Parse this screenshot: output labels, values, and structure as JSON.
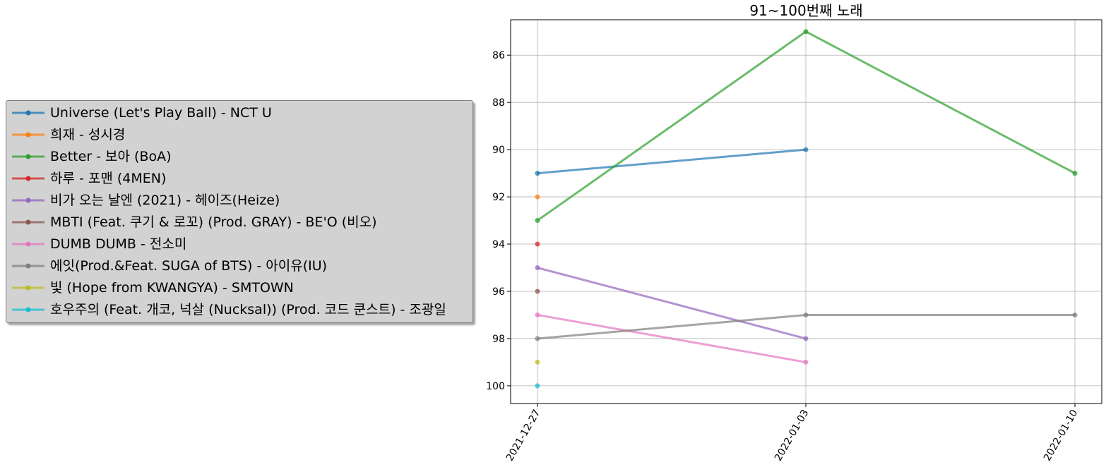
{
  "chart_data": {
    "type": "line",
    "title": "91~100번째 노래",
    "xlabel": "",
    "ylabel": "",
    "x": [
      "2021-12-27",
      "2022-01-03",
      "2022-01-10"
    ],
    "y_inverted": true,
    "ylim": [
      100.75,
      84.5
    ],
    "yticks": [
      86,
      88,
      90,
      92,
      94,
      96,
      98,
      100
    ],
    "grid": true,
    "legend_position": "left, outside plot",
    "series": [
      {
        "name": "Universe (Let's Play Ball) - NCT U",
        "color": "#1f77b4",
        "values": [
          91,
          90,
          null
        ]
      },
      {
        "name": "희재 - 성시경",
        "color": "#ff7f0e",
        "values": [
          92,
          null,
          null
        ]
      },
      {
        "name": "Better - 보아 (BoA)",
        "color": "#2ca02c",
        "values": [
          93,
          85,
          91
        ]
      },
      {
        "name": "하루 - 포맨 (4MEN)",
        "color": "#d62728",
        "values": [
          94,
          null,
          null
        ]
      },
      {
        "name": "비가 오는 날엔 (2021) - 헤이즈(Heize)",
        "color": "#9467bd",
        "values": [
          95,
          98,
          null
        ]
      },
      {
        "name": "MBTI (Feat. 쿠기 & 로꼬) (Prod. GRAY) - BE'O (비오)",
        "color": "#8c564b",
        "values": [
          96,
          null,
          null
        ]
      },
      {
        "name": "DUMB DUMB - 전소미",
        "color": "#e377c2",
        "values": [
          97,
          99,
          null
        ]
      },
      {
        "name": "에잇(Prod.&Feat. SUGA of BTS) - 아이유(IU)",
        "color": "#7f7f7f",
        "values": [
          98,
          97,
          97
        ]
      },
      {
        "name": "빛 (Hope from KWANGYA) - SMTOWN",
        "color": "#bcbd22",
        "values": [
          99,
          null,
          null
        ]
      },
      {
        "name": "호우주의 (Feat. 개코, 넉살 (Nucksal)) (Prod. 코드 쿤스트) - 조광일",
        "color": "#17becf",
        "values": [
          100,
          null,
          null
        ]
      }
    ]
  }
}
